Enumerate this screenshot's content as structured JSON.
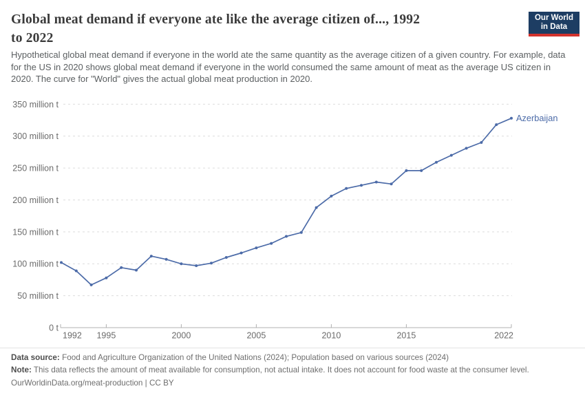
{
  "header": {
    "title_line1": "Global meat demand if everyone ate like the average citizen of..., 1992",
    "title_line2": "to 2022",
    "subtitle": "Hypothetical global meat demand if everyone in the world ate the same quantity as the average citizen of a given country. For example, data for the US in 2020 shows global meat demand if everyone in the world consumed the same amount of meat as the average US citizen in 2020. The curve for \"World\" gives the actual global meat production in 2020.",
    "logo": {
      "line1": "Our World",
      "line2": "in Data"
    }
  },
  "colors": {
    "line": "#4c6ba8",
    "grid": "#dcdcdc",
    "axis": "#b0b0b0",
    "tick_text": "#6b6b6b",
    "end_label": "#4c6ba8",
    "logo_bg": "#1d3d63",
    "logo_bar": "#d2322d"
  },
  "chart_data": {
    "type": "line",
    "title": "Global meat demand if everyone ate like the average citizen of..., 1992 to 2022",
    "unit": "million t",
    "grid": "horizontal-dashed",
    "legend_position": "end-of-line-label",
    "xlim": [
      1992,
      2022
    ],
    "ylim": [
      0,
      350
    ],
    "y_ticks": [
      0,
      50,
      100,
      150,
      200,
      250,
      300,
      350
    ],
    "y_tick_labels": [
      "0 t",
      "50 million t",
      "100 million t",
      "150 million t",
      "200 million t",
      "250 million t",
      "300 million t",
      "350 million t"
    ],
    "x_tick_years": [
      1992,
      1995,
      2000,
      2005,
      2010,
      2015,
      2022
    ],
    "x_tick_labels": [
      "1992",
      "1995",
      "2000",
      "2005",
      "2010",
      "2015",
      "2022"
    ],
    "years": [
      1992,
      1993,
      1994,
      1995,
      1996,
      1997,
      1998,
      1999,
      2000,
      2001,
      2002,
      2003,
      2004,
      2005,
      2006,
      2007,
      2008,
      2009,
      2010,
      2011,
      2012,
      2013,
      2014,
      2015,
      2016,
      2017,
      2018,
      2019,
      2020,
      2021,
      2022
    ],
    "series": [
      {
        "name": "Azerbaijan",
        "values": [
          102,
          89,
          67,
          78,
          94,
          90,
          112,
          107,
          100,
          97,
          101,
          110,
          117,
          125,
          132,
          143,
          149,
          188,
          206,
          218,
          223,
          228,
          225,
          246,
          246,
          259,
          270,
          281,
          290,
          318,
          328
        ]
      }
    ]
  },
  "footer": {
    "datasource_label": "Data source:",
    "datasource_text": "Food and Agriculture Organization of the United Nations (2024); Population based on various sources (2024)",
    "note_label": "Note:",
    "note_text": "This data reflects the amount of meat available for consumption, not actual intake. It does not account for food waste at the consumer level.",
    "link": "OurWorldinData.org/meat-production | CC BY"
  }
}
